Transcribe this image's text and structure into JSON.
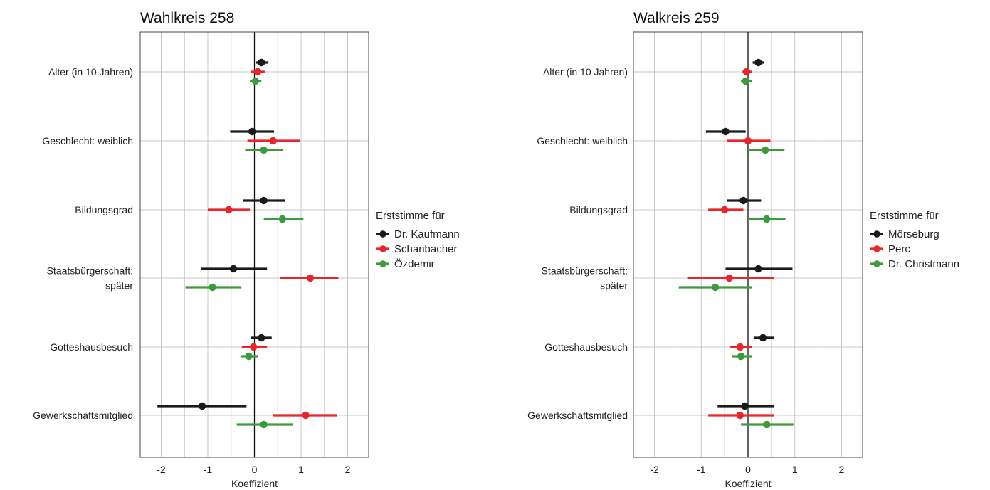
{
  "chart_data": [
    {
      "type": "scatter",
      "title": "Wahlkreis 258",
      "xlabel": "Koeffizient",
      "xlim": [
        -2.45,
        2.45
      ],
      "xticks": [
        "-2",
        "-1",
        "0",
        "1",
        "2"
      ],
      "grid": true,
      "categories": [
        "Alter (in 10 Jahren)",
        "Geschlecht: weiblich",
        "Bildungsgrad",
        "Staatsbürgerschaft:\nspäter",
        "Gotteshausbesuch",
        "Gewerkschaftsmitglied"
      ],
      "legend": {
        "title": "Erststimme für",
        "position": "right"
      },
      "series": [
        {
          "name": "Dr. Kaufmann",
          "color": "#1a1a1a",
          "values": [
            0.15,
            -0.05,
            0.2,
            -0.45,
            0.15,
            -1.12
          ],
          "lower": [
            0.03,
            -0.52,
            -0.25,
            -1.15,
            -0.07,
            -2.08
          ],
          "upper": [
            0.3,
            0.42,
            0.65,
            0.27,
            0.37,
            -0.17
          ]
        },
        {
          "name": "Schanbacher",
          "color": "#e8252b",
          "values": [
            0.07,
            0.4,
            -0.55,
            1.2,
            -0.02,
            1.1
          ],
          "lower": [
            -0.08,
            -0.15,
            -1.0,
            0.55,
            -0.27,
            0.4
          ],
          "upper": [
            0.22,
            0.97,
            -0.1,
            1.8,
            0.27,
            1.77
          ]
        },
        {
          "name": "Özdemir",
          "color": "#3e9a3e",
          "values": [
            0.02,
            0.2,
            0.6,
            -0.9,
            -0.12,
            0.2
          ],
          "lower": [
            -0.1,
            -0.2,
            0.2,
            -1.48,
            -0.3,
            -0.38
          ],
          "upper": [
            0.15,
            0.62,
            1.05,
            -0.28,
            0.08,
            0.82
          ]
        }
      ]
    },
    {
      "type": "scatter",
      "title": "Walkreis 259",
      "xlabel": "Koeffizient",
      "xlim": [
        -2.45,
        2.45
      ],
      "xticks": [
        "-2",
        "-1",
        "0",
        "1",
        "2"
      ],
      "grid": true,
      "categories": [
        "Alter (in 10 Jahren)",
        "Geschlecht: weiblich",
        "Bildungsgrad",
        "Staatsbürgerschaft:\nspäter",
        "Gotteshausbesuch",
        "Gewerkschaftsmitglied"
      ],
      "legend": {
        "title": "Erststimme für",
        "position": "right"
      },
      "series": [
        {
          "name": "Mörseburg",
          "color": "#1a1a1a",
          "values": [
            0.22,
            -0.48,
            -0.1,
            0.22,
            0.32,
            -0.07
          ],
          "lower": [
            0.1,
            -0.9,
            -0.45,
            -0.48,
            0.12,
            -0.65
          ],
          "upper": [
            0.35,
            -0.05,
            0.28,
            0.95,
            0.55,
            0.55
          ]
        },
        {
          "name": "Perc",
          "color": "#e8252b",
          "values": [
            -0.03,
            0.0,
            -0.5,
            -0.4,
            -0.17,
            -0.17
          ],
          "lower": [
            -0.12,
            -0.45,
            -0.85,
            -1.3,
            -0.38,
            -0.85
          ],
          "upper": [
            0.08,
            0.48,
            -0.1,
            0.55,
            0.08,
            0.55
          ]
        },
        {
          "name": "Dr. Christmann",
          "color": "#3e9a3e",
          "values": [
            -0.05,
            0.37,
            0.4,
            -0.7,
            -0.15,
            0.4
          ],
          "lower": [
            -0.15,
            0.0,
            0.0,
            -1.48,
            -0.35,
            -0.15
          ],
          "upper": [
            0.08,
            0.78,
            0.8,
            0.08,
            0.08,
            0.97
          ]
        }
      ]
    }
  ]
}
